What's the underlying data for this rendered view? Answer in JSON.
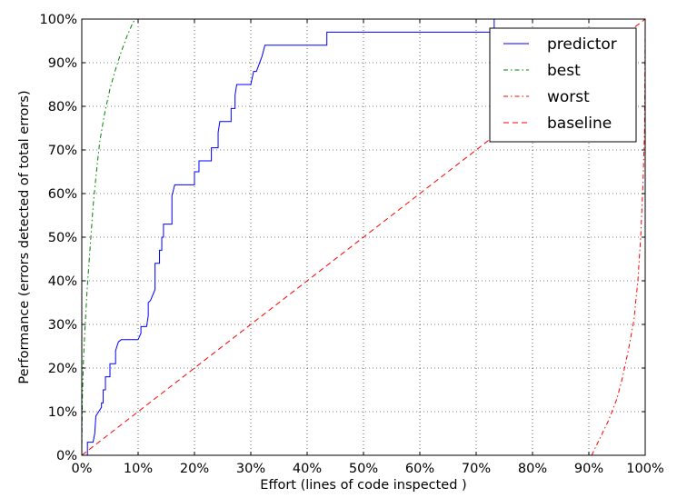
{
  "chart_data": {
    "type": "line",
    "title": "",
    "xlabel": "Effort (lines of code  inspected )",
    "ylabel": "Performance (errors detected of total errors)",
    "xlim": [
      0,
      100
    ],
    "ylim": [
      0,
      100
    ],
    "x_ticks": [
      "0%",
      "10%",
      "20%",
      "30%",
      "40%",
      "50%",
      "60%",
      "70%",
      "80%",
      "90%",
      "100%"
    ],
    "y_ticks": [
      "0%",
      "10%",
      "20%",
      "30%",
      "40%",
      "50%",
      "60%",
      "70%",
      "80%",
      "90%",
      "100%"
    ],
    "grid": true,
    "legend_position": "top-right",
    "series": [
      {
        "name": "predictor",
        "color": "#0000ff",
        "style": "solid",
        "points": [
          [
            0,
            0
          ],
          [
            0.5,
            0
          ],
          [
            1,
            0
          ],
          [
            1,
            3
          ],
          [
            2,
            3
          ],
          [
            2.3,
            5
          ],
          [
            2.5,
            9
          ],
          [
            3,
            10
          ],
          [
            3.5,
            11
          ],
          [
            3.5,
            12
          ],
          [
            3.8,
            12
          ],
          [
            3.8,
            15
          ],
          [
            4.2,
            15
          ],
          [
            4.2,
            18
          ],
          [
            5,
            18
          ],
          [
            5,
            21
          ],
          [
            6,
            21
          ],
          [
            6,
            24
          ],
          [
            6.5,
            26
          ],
          [
            7,
            26.5
          ],
          [
            10,
            26.5
          ],
          [
            10.5,
            28
          ],
          [
            10.5,
            29.5
          ],
          [
            11.5,
            29.5
          ],
          [
            11.8,
            32
          ],
          [
            11.8,
            35
          ],
          [
            12.2,
            35.5
          ],
          [
            13,
            38
          ],
          [
            13,
            44
          ],
          [
            13.8,
            44
          ],
          [
            13.8,
            47
          ],
          [
            14.2,
            47
          ],
          [
            14.2,
            50
          ],
          [
            14.5,
            50
          ],
          [
            14.5,
            53
          ],
          [
            16,
            53
          ],
          [
            16,
            59.5
          ],
          [
            16.5,
            62
          ],
          [
            20,
            62
          ],
          [
            20,
            65
          ],
          [
            20.8,
            65
          ],
          [
            20.8,
            67.5
          ],
          [
            23,
            67.5
          ],
          [
            23,
            70.5
          ],
          [
            24.2,
            70.5
          ],
          [
            24.2,
            74
          ],
          [
            24.5,
            76.5
          ],
          [
            26.5,
            76.5
          ],
          [
            26.5,
            79.5
          ],
          [
            27.2,
            79.5
          ],
          [
            27.2,
            82.5
          ],
          [
            27.5,
            85
          ],
          [
            30,
            85
          ],
          [
            30.5,
            88
          ],
          [
            31,
            88
          ],
          [
            32,
            91.5
          ],
          [
            32.5,
            94
          ],
          [
            43.5,
            94
          ],
          [
            43.5,
            97
          ],
          [
            73.2,
            97
          ],
          [
            73.2,
            100
          ],
          [
            100,
            100
          ]
        ]
      },
      {
        "name": "best",
        "color": "#008000",
        "style": "dashdot",
        "points": [
          [
            0,
            0
          ],
          [
            0.1,
            13
          ],
          [
            0.3,
            22
          ],
          [
            0.6,
            30
          ],
          [
            1,
            39
          ],
          [
            1.5,
            48
          ],
          [
            2,
            57
          ],
          [
            2.6,
            65
          ],
          [
            3.2,
            72
          ],
          [
            4,
            78
          ],
          [
            5,
            84
          ],
          [
            6,
            88.5
          ],
          [
            7,
            92.5
          ],
          [
            8,
            96
          ],
          [
            9,
            99
          ],
          [
            9.5,
            100
          ]
        ]
      },
      {
        "name": "worst",
        "color": "#ff0000",
        "style": "dashdot",
        "points": [
          [
            90.5,
            0
          ],
          [
            92,
            4
          ],
          [
            93.5,
            8
          ],
          [
            95,
            13
          ],
          [
            96,
            18
          ],
          [
            97,
            24
          ],
          [
            98,
            31
          ],
          [
            98.7,
            40
          ],
          [
            99.2,
            50
          ],
          [
            99.6,
            62
          ],
          [
            99.9,
            75
          ],
          [
            100,
            100
          ]
        ]
      },
      {
        "name": "baseline",
        "color": "#ff0000",
        "style": "dashed",
        "points": [
          [
            0,
            0
          ],
          [
            100,
            100
          ]
        ]
      }
    ]
  }
}
